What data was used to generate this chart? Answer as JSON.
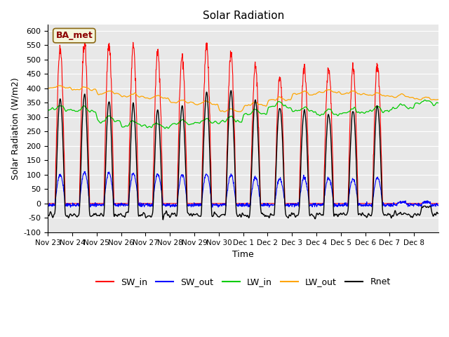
{
  "title": "Solar Radiation",
  "xlabel": "Time",
  "ylabel": "Solar Radiation (W/m2)",
  "ylim": [
    -100,
    620
  ],
  "yticks": [
    -100,
    -50,
    0,
    50,
    100,
    150,
    200,
    250,
    300,
    350,
    400,
    450,
    500,
    550,
    600
  ],
  "annotation": "BA_met",
  "bg_color": "#e8e8e8",
  "colors": {
    "SW_in": "#ff0000",
    "SW_out": "#0000ff",
    "LW_in": "#00cc00",
    "LW_out": "#ffa500",
    "Rnet": "#000000"
  },
  "xtick_labels": [
    "Nov 23",
    "Nov 24",
    "Nov 25",
    "Nov 26",
    "Nov 27",
    "Nov 28",
    "Nov 29",
    "Nov 30",
    "Dec 1",
    "Dec 2",
    "Dec 3",
    "Dec 4",
    "Dec 5",
    "Dec 6",
    "Dec 7",
    "Dec 8"
  ],
  "sw_in_peaks": [
    540,
    560,
    548,
    546,
    530,
    510,
    550,
    515,
    477,
    440,
    477,
    475,
    470,
    477,
    5,
    5
  ],
  "sw_out_peaks": [
    100,
    110,
    105,
    103,
    101,
    100,
    103,
    98,
    90,
    85,
    90,
    88,
    85,
    90,
    5,
    5
  ],
  "lw_in_base": [
    325,
    320,
    285,
    270,
    265,
    275,
    280,
    285,
    310,
    335,
    320,
    310,
    315,
    320,
    330,
    345
  ],
  "lw_out_base": [
    400,
    395,
    380,
    370,
    365,
    350,
    345,
    320,
    340,
    360,
    380,
    385,
    380,
    375,
    370,
    360
  ]
}
